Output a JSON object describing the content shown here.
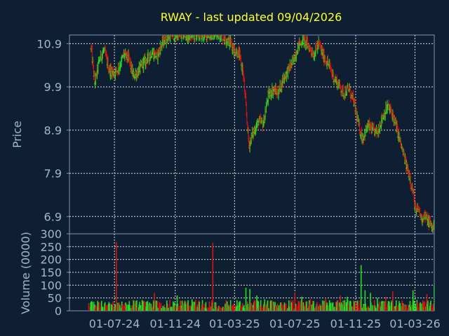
{
  "chart_data": [
    {
      "type": "candlestick",
      "title": "RWAY - last updated 09/04/2026",
      "ylabel": "Price",
      "ylim": [
        6.5,
        11.1
      ],
      "yticks": [
        "10.9",
        "9.9",
        "8.9",
        "7.9",
        "6.9"
      ],
      "ytick_values": [
        10.9,
        9.9,
        8.9,
        7.9,
        6.9
      ],
      "grid": true,
      "colors": {
        "up": "#22dd22",
        "down": "#dd1111",
        "background": "#0f1f33",
        "text": "#9fb7d0",
        "title": "#ffff33",
        "grid": "#dddddd"
      },
      "series": [
        {
          "values": [
            [
              "2024-05-15",
              10.78
            ],
            [
              "2024-05-22",
              9.98
            ],
            [
              "2024-06-01",
              10.55
            ],
            [
              "2024-06-10",
              10.75
            ],
            [
              "2024-06-20",
              10.3
            ],
            [
              "2024-07-01",
              10.22
            ],
            [
              "2024-07-10",
              10.35
            ],
            [
              "2024-07-20",
              10.65
            ],
            [
              "2024-07-30",
              10.55
            ],
            [
              "2024-08-08",
              10.15
            ],
            [
              "2024-08-18",
              10.25
            ],
            [
              "2024-08-28",
              10.45
            ],
            [
              "2024-09-06",
              10.55
            ],
            [
              "2024-09-15",
              10.7
            ],
            [
              "2024-09-25",
              10.6
            ],
            [
              "2024-10-05",
              10.9
            ],
            [
              "2024-10-15",
              11.05
            ],
            [
              "2024-10-25",
              11.1
            ],
            [
              "2024-11-10",
              11.1
            ],
            [
              "2024-12-01",
              11.1
            ],
            [
              "2025-01-01",
              11.1
            ],
            [
              "2025-02-01",
              11.1
            ],
            [
              "2025-02-20",
              10.95
            ],
            [
              "2025-03-01",
              10.75
            ],
            [
              "2025-03-10",
              10.65
            ],
            [
              "2025-03-18",
              10.25
            ],
            [
              "2025-03-23",
              9.55
            ],
            [
              "2025-03-30",
              8.55
            ],
            [
              "2025-04-08",
              8.85
            ],
            [
              "2025-04-18",
              9.1
            ],
            [
              "2025-04-28",
              9.05
            ],
            [
              "2025-05-08",
              9.7
            ],
            [
              "2025-05-18",
              9.85
            ],
            [
              "2025-05-28",
              9.75
            ],
            [
              "2025-06-08",
              10.1
            ],
            [
              "2025-06-18",
              10.3
            ],
            [
              "2025-06-28",
              10.5
            ],
            [
              "2025-07-08",
              10.85
            ],
            [
              "2025-07-18",
              11.0
            ],
            [
              "2025-07-28",
              10.85
            ],
            [
              "2025-08-08",
              10.65
            ],
            [
              "2025-08-18",
              10.9
            ],
            [
              "2025-08-28",
              10.6
            ],
            [
              "2025-09-08",
              10.4
            ],
            [
              "2025-09-18",
              10.1
            ],
            [
              "2025-09-28",
              9.95
            ],
            [
              "2025-10-08",
              9.75
            ],
            [
              "2025-10-18",
              9.85
            ],
            [
              "2025-10-28",
              9.55
            ],
            [
              "2025-11-08",
              8.95
            ],
            [
              "2025-11-15",
              8.7
            ],
            [
              "2025-11-25",
              9.0
            ],
            [
              "2025-12-05",
              8.9
            ],
            [
              "2025-12-15",
              8.85
            ],
            [
              "2025-12-25",
              9.2
            ],
            [
              "2026-01-05",
              9.45
            ],
            [
              "2026-01-15",
              9.25
            ],
            [
              "2026-01-25",
              8.85
            ],
            [
              "2026-02-05",
              8.35
            ],
            [
              "2026-02-12",
              8.05
            ],
            [
              "2026-02-18",
              7.85
            ],
            [
              "2026-02-25",
              7.45
            ],
            [
              "2026-03-03",
              6.95
            ],
            [
              "2026-03-08",
              7.1
            ],
            [
              "2026-03-14",
              6.85
            ],
            [
              "2026-03-20",
              6.95
            ],
            [
              "2026-03-26",
              6.8
            ],
            [
              "2026-03-31",
              6.75
            ],
            [
              "2026-04-05",
              6.65
            ],
            [
              "2026-04-09",
              6.65
            ]
          ]
        }
      ],
      "x": {
        "type": "date",
        "tick_labels": [
          "01-07-24",
          "01-11-24",
          "01-03-25",
          "01-07-25",
          "01-11-25",
          "01-03-26"
        ],
        "tick_values": [
          "2024-07-01",
          "2024-11-01",
          "2025-03-01",
          "2025-07-01",
          "2025-11-01",
          "2026-03-01"
        ],
        "range": [
          "2024-04-01",
          "2026-04-09"
        ]
      }
    },
    {
      "type": "bar",
      "ylabel": "Volume (0000)",
      "ylim": [
        0,
        300
      ],
      "yticks": [
        "300",
        "250",
        "200",
        "150",
        "100",
        "50",
        "0"
      ],
      "ytick_values": [
        300,
        250,
        200,
        150,
        100,
        50,
        0
      ],
      "grid": true,
      "x": {
        "type": "date",
        "tick_labels": [
          "01-07-24",
          "01-11-24",
          "01-03-25",
          "01-07-25",
          "01-11-25",
          "01-03-26"
        ],
        "tick_values": [
          "2024-07-01",
          "2024-11-01",
          "2025-03-01",
          "2025-07-01",
          "2025-11-01",
          "2026-03-01"
        ],
        "range": [
          "2024-04-01",
          "2026-04-09"
        ]
      },
      "series": [
        {
          "values": [
            [
              "2024-05-10",
              30
            ],
            [
              "2024-06-01",
              70
            ],
            [
              "2024-06-20",
              35
            ],
            [
              "2024-07-05",
              268
            ],
            [
              "2024-07-20",
              90
            ],
            [
              "2024-08-10",
              55
            ],
            [
              "2024-09-01",
              40
            ],
            [
              "2024-09-20",
              70
            ],
            [
              "2024-10-05",
              100
            ],
            [
              "2024-10-20",
              45
            ],
            [
              "2024-11-05",
              60
            ],
            [
              "2024-11-20",
              40
            ],
            [
              "2024-12-05",
              45
            ],
            [
              "2024-12-20",
              35
            ],
            [
              "2025-01-05",
              50
            ],
            [
              "2025-01-12",
              95
            ],
            [
              "2025-01-16",
              265
            ],
            [
              "2025-02-01",
              50
            ],
            [
              "2025-02-15",
              35
            ],
            [
              "2025-03-01",
              55
            ],
            [
              "2025-03-15",
              70
            ],
            [
              "2025-03-24",
              90
            ],
            [
              "2025-04-01",
              85
            ],
            [
              "2025-04-15",
              60
            ],
            [
              "2025-05-01",
              45
            ],
            [
              "2025-05-15",
              40
            ],
            [
              "2025-06-01",
              50
            ],
            [
              "2025-06-15",
              80
            ],
            [
              "2025-07-01",
              70
            ],
            [
              "2025-07-15",
              55
            ],
            [
              "2025-08-01",
              45
            ],
            [
              "2025-08-15",
              35
            ],
            [
              "2025-09-01",
              50
            ],
            [
              "2025-09-15",
              30
            ],
            [
              "2025-10-01",
              60
            ],
            [
              "2025-10-15",
              55
            ],
            [
              "2025-11-01",
              50
            ],
            [
              "2025-11-08",
              100
            ],
            [
              "2025-11-12",
              178
            ],
            [
              "2025-11-20",
              80
            ],
            [
              "2025-12-01",
              70
            ],
            [
              "2025-12-15",
              50
            ],
            [
              "2026-01-01",
              55
            ],
            [
              "2026-01-15",
              75
            ],
            [
              "2026-02-01",
              45
            ],
            [
              "2026-02-15",
              60
            ],
            [
              "2026-02-25",
              80
            ],
            [
              "2026-03-01",
              55
            ],
            [
              "2026-03-08",
              100
            ],
            [
              "2026-03-15",
              70
            ],
            [
              "2026-03-25",
              65
            ],
            [
              "2026-04-05",
              90
            ],
            [
              "2026-04-09",
              100
            ]
          ]
        }
      ]
    }
  ]
}
